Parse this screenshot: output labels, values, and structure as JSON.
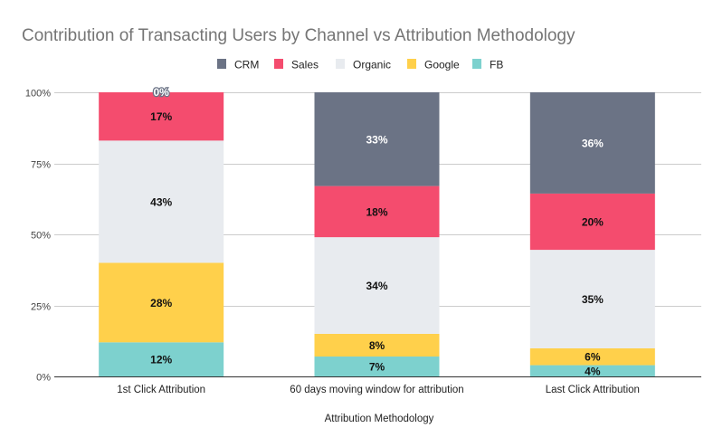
{
  "chart_data": {
    "type": "bar",
    "stacked": true,
    "percent_stacked": true,
    "title": "Contribution of Transacting Users by Channel vs Attribution Methodology",
    "xlabel": "Attribution Methodology",
    "ylabel": "",
    "ylim": [
      0,
      100
    ],
    "yticks": [
      "0%",
      "25%",
      "50%",
      "75%",
      "100%"
    ],
    "ytick_values": [
      0,
      25,
      50,
      75,
      100
    ],
    "grid": true,
    "legend_position": "top-center",
    "categories": [
      "1st Click Attribution",
      "60 days moving window for attribution",
      "Last Click Attribution"
    ],
    "series": [
      {
        "name": "FB",
        "color": "#7dd1ce",
        "values": [
          12,
          7,
          4
        ],
        "labels": [
          "12%",
          "7%",
          "4%"
        ]
      },
      {
        "name": "Google",
        "color": "#ffd04b",
        "values": [
          28,
          8,
          6
        ],
        "labels": [
          "28%",
          "8%",
          "6%"
        ]
      },
      {
        "name": "Organic",
        "color": "#e8ebef",
        "values": [
          43,
          34,
          35
        ],
        "labels": [
          "43%",
          "34%",
          "35%"
        ]
      },
      {
        "name": "Sales",
        "color": "#f44c6e",
        "values": [
          17,
          18,
          20
        ],
        "labels": [
          "17%",
          "18%",
          "20%"
        ]
      },
      {
        "name": "CRM",
        "color": "#6b7385",
        "values": [
          0,
          33,
          36
        ],
        "labels": [
          "0%",
          "33%",
          "36%"
        ]
      }
    ],
    "legend_order": [
      "CRM",
      "Sales",
      "Organic",
      "Google",
      "FB"
    ]
  }
}
